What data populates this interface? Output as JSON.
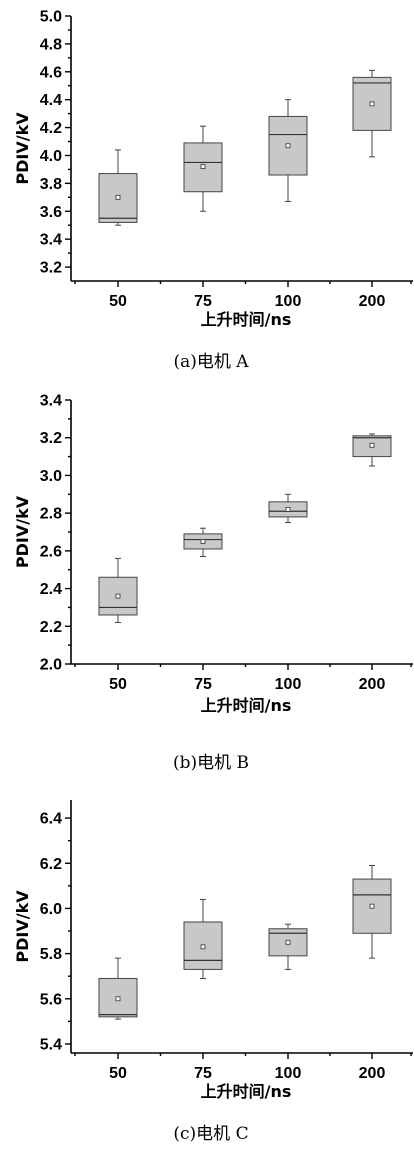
{
  "chart_data": [
    {
      "type": "box",
      "caption": "(a)电机 A",
      "xlabel": "上升时间/ns",
      "ylabel": "PDIV/kV",
      "categories": [
        "50",
        "75",
        "100",
        "200"
      ],
      "ylim": [
        3.1,
        5.0
      ],
      "yticks": [
        "3.2",
        "3.4",
        "3.6",
        "3.8",
        "4.0",
        "4.2",
        "4.4",
        "4.6",
        "4.8",
        "5.0"
      ],
      "boxes": [
        {
          "min": 3.5,
          "q1": 3.52,
          "median": 3.55,
          "q3": 3.87,
          "max": 4.04,
          "mean": 3.7
        },
        {
          "min": 3.6,
          "q1": 3.74,
          "median": 3.95,
          "q3": 4.09,
          "max": 4.21,
          "mean": 3.92
        },
        {
          "min": 3.67,
          "q1": 3.86,
          "median": 4.15,
          "q3": 4.28,
          "max": 4.4,
          "mean": 4.07
        },
        {
          "min": 3.99,
          "q1": 4.18,
          "median": 4.52,
          "q3": 4.56,
          "max": 4.61,
          "mean": 4.37
        }
      ]
    },
    {
      "type": "box",
      "caption": "(b)电机 B",
      "xlabel": "上升时间/ns",
      "ylabel": "PDIV/kV",
      "categories": [
        "50",
        "75",
        "100",
        "200"
      ],
      "ylim": [
        2.0,
        3.4
      ],
      "yticks": [
        "2.0",
        "2.2",
        "2.4",
        "2.6",
        "2.8",
        "3.0",
        "3.2",
        "3.4"
      ],
      "boxes": [
        {
          "min": 2.22,
          "q1": 2.26,
          "median": 2.3,
          "q3": 2.46,
          "max": 2.56,
          "mean": 2.36
        },
        {
          "min": 2.57,
          "q1": 2.61,
          "median": 2.66,
          "q3": 2.69,
          "max": 2.72,
          "mean": 2.65
        },
        {
          "min": 2.75,
          "q1": 2.78,
          "median": 2.81,
          "q3": 2.86,
          "max": 2.9,
          "mean": 2.82
        },
        {
          "min": 3.05,
          "q1": 3.1,
          "median": 3.2,
          "q3": 3.21,
          "max": 3.22,
          "mean": 3.16
        }
      ]
    },
    {
      "type": "box",
      "caption": "(c)电机 C",
      "xlabel": "上升时间/ns",
      "ylabel": "PDIV/kV",
      "categories": [
        "50",
        "75",
        "100",
        "200"
      ],
      "ylim": [
        5.36,
        6.48
      ],
      "yticks": [
        "5.4",
        "5.6",
        "5.8",
        "6.0",
        "6.2",
        "6.4"
      ],
      "boxes": [
        {
          "min": 5.51,
          "q1": 5.52,
          "median": 5.53,
          "q3": 5.69,
          "max": 5.78,
          "mean": 5.6
        },
        {
          "min": 5.69,
          "q1": 5.73,
          "median": 5.77,
          "q3": 5.94,
          "max": 6.04,
          "mean": 5.83
        },
        {
          "min": 5.73,
          "q1": 5.79,
          "median": 5.89,
          "q3": 5.91,
          "max": 5.93,
          "mean": 5.85
        },
        {
          "min": 5.78,
          "q1": 5.89,
          "median": 6.06,
          "q3": 6.13,
          "max": 6.19,
          "mean": 6.01
        }
      ]
    }
  ]
}
